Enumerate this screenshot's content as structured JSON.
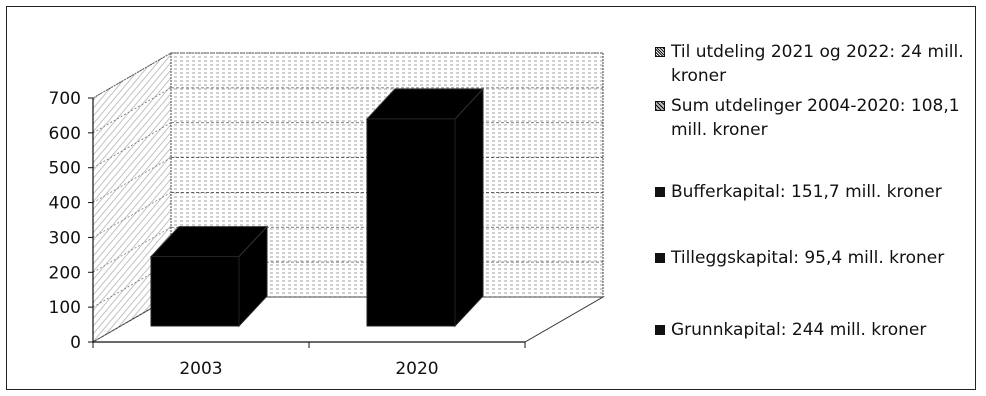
{
  "chart_data": {
    "type": "bar",
    "categories": [
      "2003",
      "2020"
    ],
    "series": [
      {
        "values": [
          245,
          640
        ]
      }
    ],
    "legend": [
      {
        "label": "Til utdeling 2021 og 2022: 24 mill. kroner"
      },
      {
        "label": "Sum utdelinger 2004-2020: 108,1 mill. kroner"
      },
      {
        "label": "Bufferkapital: 151,7  mill. kroner"
      },
      {
        "label": "Tilleggskapital: 95,4 mill. kroner"
      },
      {
        "label": "Grunnkapital: 244 mill. kroner"
      }
    ],
    "yticks": [
      "0",
      "100",
      "200",
      "300",
      "400",
      "500",
      "600",
      "700"
    ],
    "ylim": [
      0,
      700
    ],
    "grid": true,
    "legend_position": "right",
    "style": "3d-column",
    "bar_color": "#000000"
  }
}
